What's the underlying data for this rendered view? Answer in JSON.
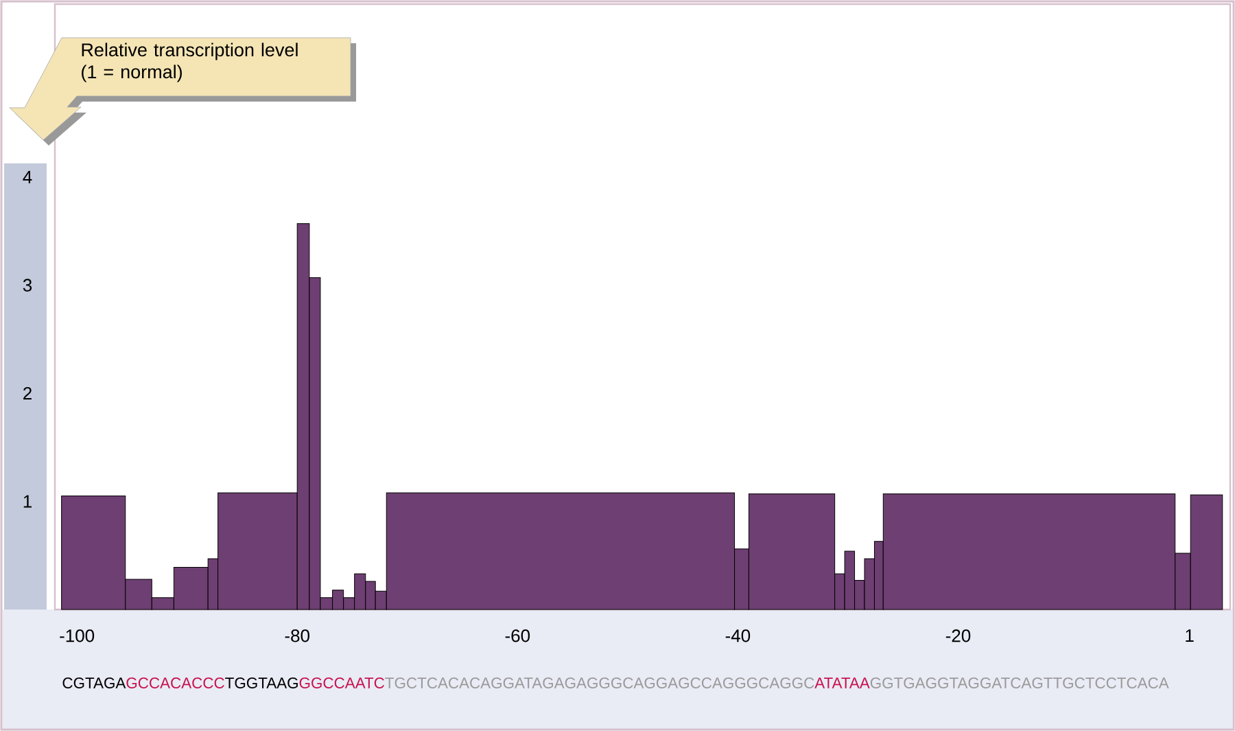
{
  "chart_data": {
    "type": "histogram",
    "ylabel": "Relative transcription level (1 = normal)",
    "bins": [
      -101.4,
      -95.6,
      -93.2,
      -91.2,
      -88.1,
      -87.2,
      -80,
      -78.9,
      -77.9,
      -76.8,
      -75.8,
      -74.8,
      -73.8,
      -72.9,
      -71.9,
      -40.3,
      -39.0,
      -31.2,
      -30.3,
      -29.4,
      -28.5,
      -27.6,
      -26.8,
      -0.3,
      1.1,
      4.0
    ],
    "values": [
      1.05,
      0.28,
      0.11,
      0.39,
      0.47,
      1.08,
      3.57,
      3.07,
      0.11,
      0.18,
      0.11,
      0.33,
      0.26,
      0.17,
      1.08,
      0.56,
      1.07,
      0.33,
      0.54,
      0.27,
      0.47,
      0.63,
      1.07,
      0.52,
      1.06
    ],
    "color": "#6e3f72",
    "xlim": [
      -102,
      4.7
    ],
    "ylim": [
      0,
      5.6
    ],
    "xticks": [
      -100,
      -80,
      -60,
      -40,
      -20,
      1
    ],
    "yticks": [
      1,
      2,
      3,
      4
    ],
    "annotations": [
      "CGTAGA",
      "GCCACACCC",
      "TGGTAAG",
      "GGCCAATC",
      "TGCTCACACAGGATAGAGAGGGCAGGAGCCAGGGCAGGC",
      "ATATAA",
      "GGTGAGGTAGGATCAGTTGCTCCTCACA"
    ]
  }
}
